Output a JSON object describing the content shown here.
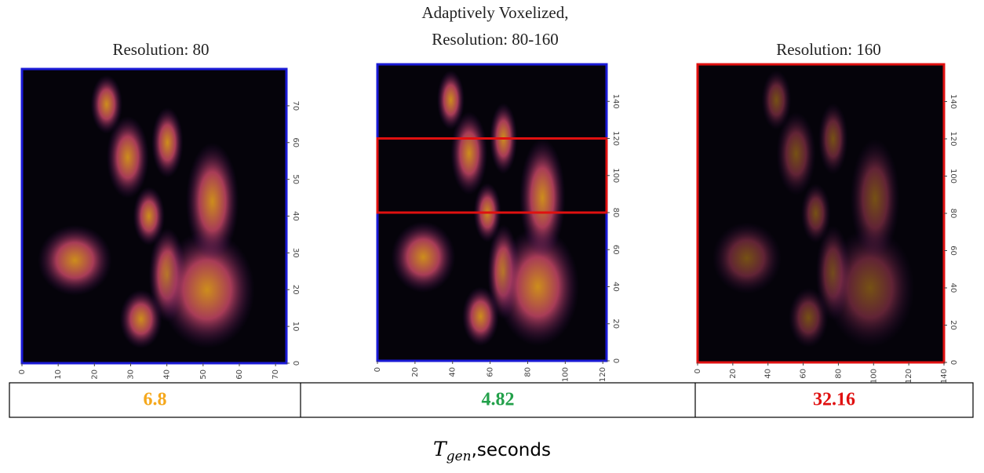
{
  "panels": [
    {
      "title": [
        "Resolution: 80"
      ],
      "xlim": [
        0,
        73
      ],
      "ylim": [
        0,
        80
      ],
      "xticks": [
        0,
        10,
        20,
        30,
        40,
        50,
        60,
        70
      ],
      "yticks": [
        0,
        10,
        20,
        30,
        40,
        50,
        60,
        70
      ],
      "frame_color": "#1a1ad6"
    },
    {
      "title": [
        "Adaptively Voxelized,",
        "Resolution: 80-160"
      ],
      "xlim": [
        0,
        122
      ],
      "ylim": [
        0,
        160
      ],
      "xticks": [
        0,
        20,
        40,
        60,
        80,
        100,
        120
      ],
      "yticks": [
        0,
        20,
        40,
        60,
        80,
        100,
        120,
        140
      ],
      "frame_color": "#1a1ad6",
      "highlight_rows": [
        80,
        120
      ],
      "highlight_color": "#e01010"
    },
    {
      "title": [
        "Resolution: 160"
      ],
      "xlim": [
        0,
        140
      ],
      "ylim": [
        0,
        160
      ],
      "xticks": [
        0,
        20,
        40,
        60,
        80,
        100,
        120,
        140
      ],
      "yticks": [
        0,
        20,
        40,
        60,
        80,
        100,
        120,
        140
      ],
      "frame_color": "#e01010"
    }
  ],
  "table": {
    "values": [
      6.8,
      4.82,
      32.16
    ],
    "colors": [
      "#f5a81c",
      "#22a04a",
      "#e01010"
    ]
  },
  "caption": {
    "symbol": "T",
    "subscript": "gen",
    "text": ",seconds"
  }
}
